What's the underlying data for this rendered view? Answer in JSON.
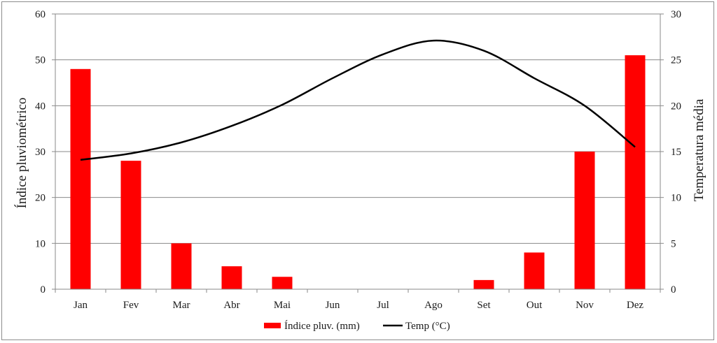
{
  "chart_data": {
    "type": "bar+line",
    "title": "",
    "categories": [
      "Jan",
      "Fev",
      "Mar",
      "Abr",
      "Mai",
      "Jun",
      "Jul",
      "Ago",
      "Set",
      "Out",
      "Nov",
      "Dez"
    ],
    "series": [
      {
        "name": "Índice pluv. (mm)",
        "type": "bar",
        "axis": "left",
        "color": "#ff0000",
        "values": [
          48,
          28,
          10,
          5,
          2.7,
          0,
          0,
          0,
          2,
          8,
          30,
          51
        ]
      },
      {
        "name": "Temp (°C)",
        "type": "line",
        "axis": "right",
        "color": "#000000",
        "values": [
          14.1,
          14.8,
          16.0,
          17.8,
          20.1,
          23.0,
          25.6,
          27.1,
          26.0,
          23.0,
          20.0,
          15.5
        ]
      }
    ],
    "y_left": {
      "label": "Índice pluviométrico",
      "min": 0,
      "max": 60,
      "ticks": [
        0,
        10,
        20,
        30,
        40,
        50,
        60
      ]
    },
    "y_right": {
      "label": "Temperatura média",
      "min": 0,
      "max": 30,
      "ticks": [
        0,
        5,
        10,
        15,
        20,
        25,
        30
      ]
    },
    "grid": true,
    "legend": "bottom"
  }
}
